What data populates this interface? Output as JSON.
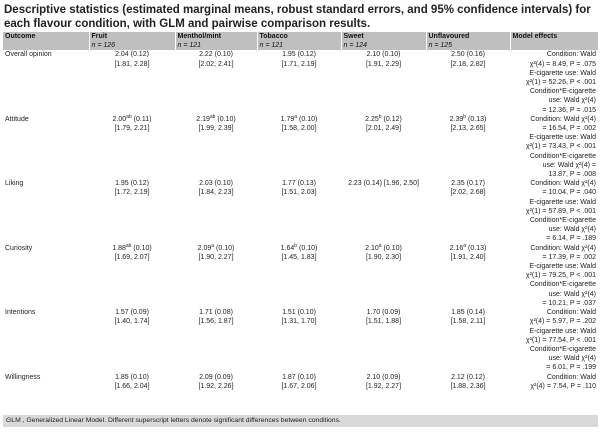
{
  "title": "Descriptive statistics (estimated marginal means, robust standard errors, and 95% confidence intervals) for each flavour condition, with GLM and pairwise comparison results.",
  "columns": {
    "outcome": "Outcome",
    "effects": "Model effects",
    "conditions": [
      {
        "name": "Fruit",
        "n": "n = 126"
      },
      {
        "name": "Menthol/mint",
        "n": "n = 121"
      },
      {
        "name": "Tobacco",
        "n": "n = 121"
      },
      {
        "name": "Sweet",
        "n": "n = 124"
      },
      {
        "name": "Unflavoured",
        "n": "n = 125"
      }
    ]
  },
  "rows": [
    {
      "outcome": "Overall opinion",
      "cells": [
        {
          "mean": "2.04",
          "sup": "",
          "se": " (0.12)",
          "ci": "[1.81, 2.28]"
        },
        {
          "mean": "2.22",
          "sup": "",
          "se": " (0.10)",
          "ci": "[2.02, 2.41]"
        },
        {
          "mean": "1.95",
          "sup": "",
          "se": " (0.12)",
          "ci": "[1.71, 2.19]"
        },
        {
          "mean": "2.10",
          "sup": "",
          "se": " (0.10)",
          "ci": "[1.91, 2.29]"
        },
        {
          "mean": "2.50",
          "sup": "",
          "se": " (0.16)",
          "ci": "[2.18, 2.82]"
        }
      ],
      "effects": [
        "Condition: Wald",
        "χ²(4) = 8.49, P = .075",
        "E-cigarette use: Wald",
        "χ²(1) = 52.26, P < .001",
        "Condition*E-cigarette",
        "use: Wald χ²(4)",
        "= 12.36, P = .015"
      ]
    },
    {
      "outcome": "Attitude",
      "cells": [
        {
          "mean": "2.00",
          "sup": "ab",
          "se": " (0.11)",
          "ci": "[1.79, 2.21]"
        },
        {
          "mean": "2.19",
          "sup": "ab",
          "se": " (0.10)",
          "ci": "[1.99, 2.39]"
        },
        {
          "mean": "1.79",
          "sup": "a",
          "se": " (0.10)",
          "ci": "[1.58, 2.00]"
        },
        {
          "mean": "2.25",
          "sup": "b",
          "se": " (0.12)",
          "ci": "[2.01, 2.49]"
        },
        {
          "mean": "2.39",
          "sup": "b",
          "se": " (0.13)",
          "ci": "[2.13, 2.65]"
        }
      ],
      "effects": [
        "Condition: Wald χ²(4)",
        "= 16.54, P = .002",
        "E-cigarette use: Wald",
        "χ²(1) = 73.43, P < .001",
        "Condition*E-cigarette",
        "use: Wald χ²(4) =",
        "13.87, P = .008"
      ]
    },
    {
      "outcome": "Liking",
      "cells": [
        {
          "mean": "1.95",
          "sup": "",
          "se": " (0.12)",
          "ci": "[1.72, 2.19]"
        },
        {
          "mean": "2.03",
          "sup": "",
          "se": " (0.10)",
          "ci": "[1.84, 2.23]"
        },
        {
          "mean": "1.77",
          "sup": "",
          "se": " (0.13)",
          "ci": "[1.51, 2.03]"
        },
        {
          "mean": "2.23",
          "sup": "",
          "se": " (0.14) [1.96, 2.50]",
          "ci": ""
        },
        {
          "mean": "2.35",
          "sup": "",
          "se": " (0.17)",
          "ci": "[2.02, 2.68]"
        }
      ],
      "effects": [
        "Condition: Wald χ²(4)",
        "= 10.04, P = .040",
        "E-cigarette use: Wald",
        "χ²(1) = 57.89, P < .001",
        "Condition*E-cigarette",
        "use: Wald χ²(4)",
        "= 6.14, P = .189"
      ]
    },
    {
      "outcome": "Curiosity",
      "cells": [
        {
          "mean": "1.88",
          "sup": "ab",
          "se": " (0.10)",
          "ci": "[1.69, 2.07]"
        },
        {
          "mean": "2.09",
          "sup": "a",
          "se": " (0.10)",
          "ci": "[1.90, 2.27]"
        },
        {
          "mean": "1.64",
          "sup": "b",
          "se": " (0.10)",
          "ci": "[1.45, 1.83]"
        },
        {
          "mean": "2.10",
          "sup": "a",
          "se": " (0.10)",
          "ci": "[1.90, 2.30]"
        },
        {
          "mean": "2.16",
          "sup": "a",
          "se": " (0.13)",
          "ci": "[1.91, 2.40]"
        }
      ],
      "effects": [
        "Condition: Wald χ²(4)",
        "= 17.39, P = .002",
        "E-cigarette use: Wald",
        "χ²(1) = 79.25, P < .001",
        "Condition*E-cigarette",
        "use: Wald χ²(4)",
        "= 10.21, P = .037"
      ]
    },
    {
      "outcome": "Intentions",
      "cells": [
        {
          "mean": "1.57",
          "sup": "",
          "se": " (0.09)",
          "ci": "[1.40, 1.74]"
        },
        {
          "mean": "1.71",
          "sup": "",
          "se": " (0.08)",
          "ci": "[1.56, 1.87]"
        },
        {
          "mean": "1.51",
          "sup": "",
          "se": " (0.10)",
          "ci": "[1.31, 1.70]"
        },
        {
          "mean": "1.70",
          "sup": "",
          "se": " (0.09)",
          "ci": "[1.51, 1.88]"
        },
        {
          "mean": "1.85",
          "sup": "",
          "se": " (0.14)",
          "ci": "[1.58, 2.11]"
        }
      ],
      "effects": [
        "Condition: Wald",
        "χ²(4) = 5.97, P = .202",
        "E-cigarette use: Wald",
        "χ²(1) = 77.54, P < .001",
        "Condition*E-cigarette",
        "use: Wald χ²(4)",
        "= 6.01, P = .199"
      ]
    },
    {
      "outcome": "Willingness",
      "cells": [
        {
          "mean": "1.85",
          "sup": "",
          "se": " (0.10)",
          "ci": "[1.66, 2.04]"
        },
        {
          "mean": "2.09",
          "sup": "",
          "se": " (0.09)",
          "ci": "[1.92, 2.26]"
        },
        {
          "mean": "1.87",
          "sup": "",
          "se": " (0.10)",
          "ci": "[1.67, 2.06]"
        },
        {
          "mean": "2.10",
          "sup": "",
          "se": " (0.09)",
          "ci": "[1.92, 2.27]"
        },
        {
          "mean": "2.12",
          "sup": "",
          "se": " (0.12)",
          "ci": "[1.88, 2.36]"
        }
      ],
      "effects": [
        "Condition: Wald",
        "χ²(4) = 7.54, P = .110"
      ]
    }
  ],
  "footer": "GLM , Generalized Linear Model. Different superscript letters denote significant differences between conditions."
}
